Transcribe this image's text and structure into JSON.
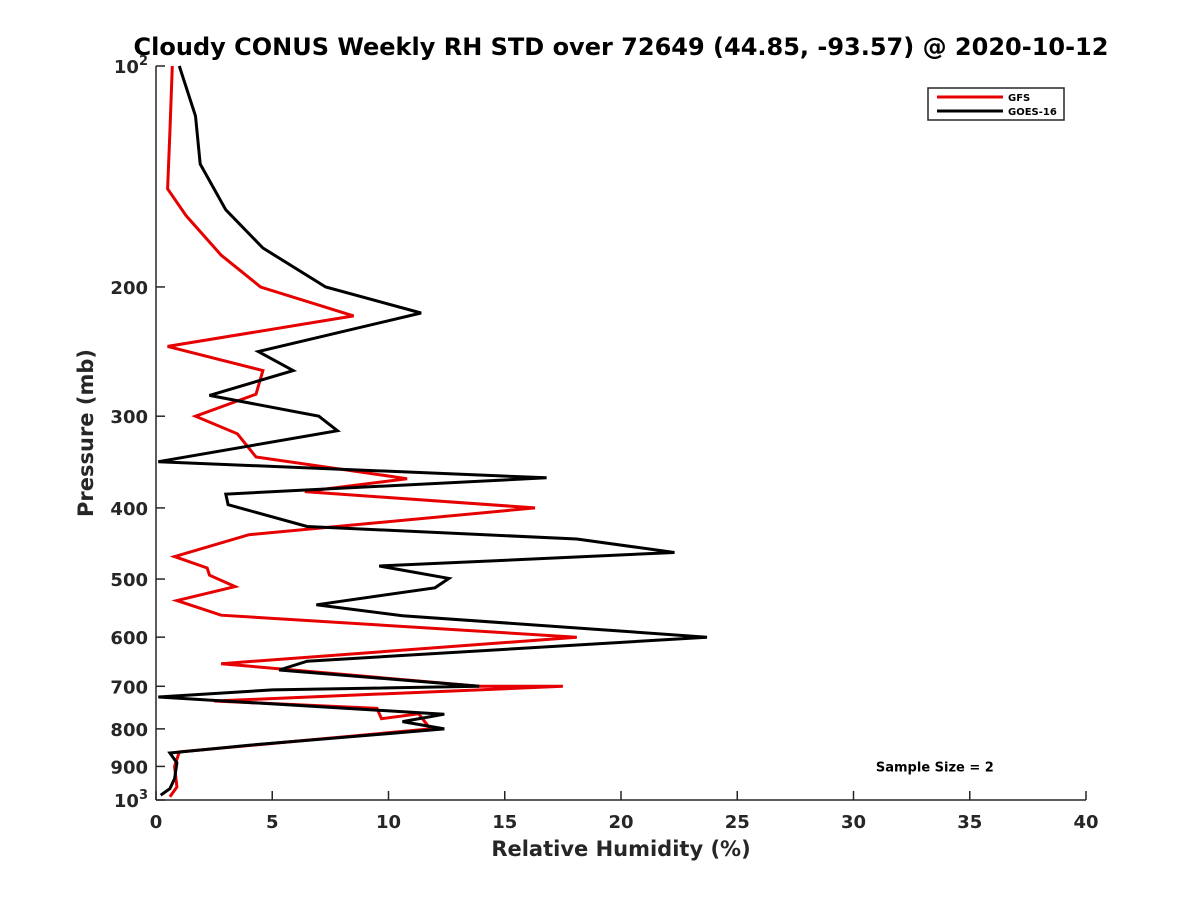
{
  "chart_data": {
    "type": "line",
    "title": "Cloudy CONUS Weekly RH STD over 72649 (44.85, -93.57) @ 2020-10-12",
    "xlabel": "Relative Humidity (%)",
    "ylabel": "Pressure (mb)",
    "xlim": [
      0,
      40
    ],
    "ylim": [
      100,
      1000
    ],
    "y_scale": "log",
    "y_reversed": true,
    "grid": false,
    "legend_position": "top-right",
    "x_ticks": [
      "0",
      "5",
      "10",
      "15",
      "20",
      "25",
      "30",
      "35",
      "40"
    ],
    "x_tick_values": [
      0,
      5,
      10,
      15,
      20,
      25,
      30,
      35,
      40
    ],
    "y_ticks": [
      {
        "value": 100,
        "base": "10",
        "exp": "2"
      },
      {
        "value": 200,
        "label": "200"
      },
      {
        "value": 300,
        "label": "300"
      },
      {
        "value": 400,
        "label": "400"
      },
      {
        "value": 500,
        "label": "500"
      },
      {
        "value": 600,
        "label": "600"
      },
      {
        "value": 700,
        "label": "700"
      },
      {
        "value": 800,
        "label": "800"
      },
      {
        "value": 900,
        "label": "900"
      },
      {
        "value": 1000,
        "base": "10",
        "exp": "3"
      }
    ],
    "series": [
      {
        "name": "GFS",
        "color": "#e60000",
        "points": [
          [
            0.7,
            100
          ],
          [
            0.6,
            123
          ],
          [
            0.5,
            147
          ],
          [
            1.3,
            160
          ],
          [
            2.8,
            181
          ],
          [
            4.5,
            200
          ],
          [
            8.5,
            219
          ],
          [
            0.5,
            241
          ],
          [
            4.6,
            260
          ],
          [
            4.3,
            280
          ],
          [
            1.7,
            300
          ],
          [
            3.5,
            317
          ],
          [
            4.3,
            341
          ],
          [
            10.8,
            365
          ],
          [
            6.4,
            380
          ],
          [
            16.3,
            400
          ],
          [
            4.0,
            435
          ],
          [
            0.8,
            466
          ],
          [
            2.2,
            483
          ],
          [
            2.3,
            494
          ],
          [
            3.4,
            512
          ],
          [
            0.9,
            535
          ],
          [
            2.8,
            560
          ],
          [
            18.1,
            600
          ],
          [
            2.8,
            652
          ],
          [
            13.9,
            700
          ],
          [
            17.5,
            700
          ],
          [
            2.5,
            733
          ],
          [
            9.5,
            750
          ],
          [
            9.7,
            775
          ],
          [
            11.3,
            763
          ],
          [
            11.8,
            800
          ],
          [
            1.0,
            860
          ],
          [
            0.8,
            900
          ],
          [
            0.9,
            960
          ],
          [
            0.6,
            990
          ]
        ]
      },
      {
        "name": "GOES-16",
        "color": "#000000",
        "points": [
          [
            1.0,
            100
          ],
          [
            1.7,
            117
          ],
          [
            1.9,
            136
          ],
          [
            3.0,
            157
          ],
          [
            4.6,
            177
          ],
          [
            7.3,
            200
          ],
          [
            11.4,
            217
          ],
          [
            4.4,
            245
          ],
          [
            5.9,
            260
          ],
          [
            2.3,
            281
          ],
          [
            7.0,
            300
          ],
          [
            7.8,
            314
          ],
          [
            0.1,
            346
          ],
          [
            16.8,
            364
          ],
          [
            3.0,
            383
          ],
          [
            3.1,
            396
          ],
          [
            6.5,
            424
          ],
          [
            18.1,
            441
          ],
          [
            22.3,
            460
          ],
          [
            9.6,
            480
          ],
          [
            12.6,
            499
          ],
          [
            12.0,
            514
          ],
          [
            6.9,
            542
          ],
          [
            10.6,
            561
          ],
          [
            18.8,
            585
          ],
          [
            23.7,
            600
          ],
          [
            6.5,
            647
          ],
          [
            5.3,
            665
          ],
          [
            13.9,
            700
          ],
          [
            5.0,
            708
          ],
          [
            0.1,
            724
          ],
          [
            12.4,
            764
          ],
          [
            10.6,
            782
          ],
          [
            12.4,
            800
          ],
          [
            4.0,
            842
          ],
          [
            0.6,
            863
          ],
          [
            0.9,
            890
          ],
          [
            0.8,
            935
          ],
          [
            0.6,
            965
          ],
          [
            0.2,
            985
          ]
        ]
      }
    ],
    "annotations": [
      {
        "text": "Sample Size = 2",
        "x": 33.5,
        "y": 900
      }
    ]
  }
}
